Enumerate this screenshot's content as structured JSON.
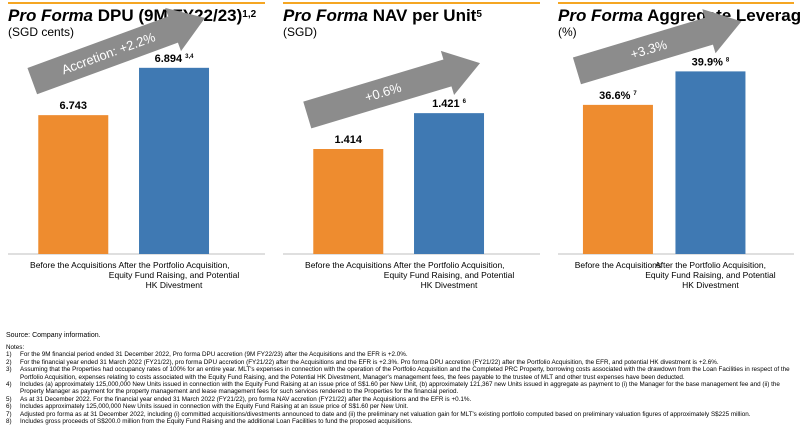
{
  "colors": {
    "orange": "#ee8c2f",
    "blue": "#3f79b3",
    "arrow": "#8c8c8c",
    "rule": "#f5a623",
    "axis": "#bfbfbf"
  },
  "chart_data": [
    {
      "type": "bar",
      "title_italic": "Pro Forma",
      "title_rest": " DPU (9M FY22/23)",
      "title_sup": "1,2",
      "subtitle": "(SGD cents)",
      "categories": [
        "Before the Acquisitions",
        "After the Portfolio Acquisition, Equity Fund Raising, and Potential HK Divestment"
      ],
      "category_lines": [
        [
          "Before the Acquisitions"
        ],
        [
          "After the Portfolio Acquisition,",
          "Equity Fund Raising, and Potential",
          "HK Divestment"
        ]
      ],
      "values": [
        6.743,
        6.894
      ],
      "data_labels": [
        "6.743",
        "6.894"
      ],
      "data_label_sups": [
        "",
        "3,4"
      ],
      "arrow_text": "Accretion: +2.2%",
      "ylim": [
        6.3,
        6.97
      ],
      "arrow_angle": -23
    },
    {
      "type": "bar",
      "title_italic": "Pro Forma",
      "title_rest": " NAV per Unit",
      "title_sup": "5",
      "subtitle": "(SGD)",
      "categories": [
        "Before the Acquisitions",
        "After the Portfolio Acquisition, Equity Fund Raising, and Potential HK Divestment"
      ],
      "category_lines": [
        [
          "Before the Acquisitions"
        ],
        [
          "After the Portfolio Acquisition,",
          "Equity Fund Raising, and Potential",
          "HK Divestment"
        ]
      ],
      "values": [
        1.414,
        1.421
      ],
      "data_labels": [
        "1.414",
        "1.421"
      ],
      "data_label_sups": [
        "",
        "6"
      ],
      "arrow_text": "+0.6%",
      "ylim": [
        1.3935,
        1.4345
      ],
      "arrow_angle": -24
    },
    {
      "type": "bar",
      "title_italic": "Pro Forma",
      "title_rest": " Aggregate Leverage",
      "title_sup": "",
      "subtitle": "(%)",
      "categories": [
        "Before the Acquisitions",
        "After the Portfolio Acquisition, Equity Fund Raising, and Potential HK Divestment"
      ],
      "category_lines": [
        [
          "Before the Acquisitions"
        ],
        [
          "After the Portfolio Acquisition,",
          "Equity Fund Raising, and Potential",
          "HK Divestment"
        ]
      ],
      "values": [
        36.6,
        39.9
      ],
      "data_labels": [
        "36.6%",
        "39.9%"
      ],
      "data_label_sups": [
        "7",
        "8"
      ],
      "arrow_text": "+3.3%",
      "ylim": [
        21.9,
        42.6
      ],
      "arrow_angle": -21
    }
  ],
  "source": "Source: Company information.",
  "notes_title": "Notes:",
  "notes": [
    {
      "num": "1)",
      "text": "For the 9M financial period ended 31 December 2022, Pro forma DPU accretion (9M FY22/23) after the Acquisitions and the EFR is +2.0%."
    },
    {
      "num": "2)",
      "text": "For the financial year ended 31 March 2022 (FY21/22), pro forma DPU accretion (FY21/22) after the Acquisitions and the EFR is +2.3%. Pro forma DPU accretion (FY21/22) after the Portfolio Acquisition, the EFR, and potential HK divestment is +2.6%."
    },
    {
      "num": "3)",
      "text": "Assuming that the Properties had occupancy rates of 100% for an entire year. MLT's expenses in connection with the operation of the Portfolio Acquisition and the Completed PRC Property, borrowing costs associated with the drawdown from the Loan Facilities in respect of the Portfolio Acquisition, expenses relating to costs associated with the Equity Fund Raising, and the Potential HK Divestment, Manager's management fees, the fees payable to the trustee of MLT and other trust expenses have been deducted."
    },
    {
      "num": "4)",
      "text": "Includes (a) approximately 125,000,000 New Units issued in connection with the Equity Fund Raising at an issue price of S$1.60 per New Unit, (b) approximately 121,367 new Units issued in aggregate as payment to (i) the Manager for the base management fee and (ii) the Property Manager as payment for the property management and lease management fees for such services rendered to the Properties for the financial period."
    },
    {
      "num": "5)",
      "text": "As at 31 December 2022. For the financial year ended 31 March 2022 (FY21/22), pro forma NAV accretion (FY21/22) after the Acquisitions and the EFR is +0.1%."
    },
    {
      "num": "6)",
      "text": "Includes approximately 125,000,000 New Units issued in connection with the Equity Fund Raising at an issue price of S$1.60 per New Unit."
    },
    {
      "num": "7)",
      "text": "Adjusted pro forma as at 31 December 2022, including (i) committed acquisitions/divestments announced to date and (ii) the preliminary net valuation gain for MLT's existing portfolio computed based on preliminary valuation figures of approximately S$225 million."
    },
    {
      "num": "8)",
      "text": "Includes gross proceeds of S$200.0 million from the Equity Fund Raising and the additional Loan Facilities to fund the proposed acquisitions."
    }
  ]
}
